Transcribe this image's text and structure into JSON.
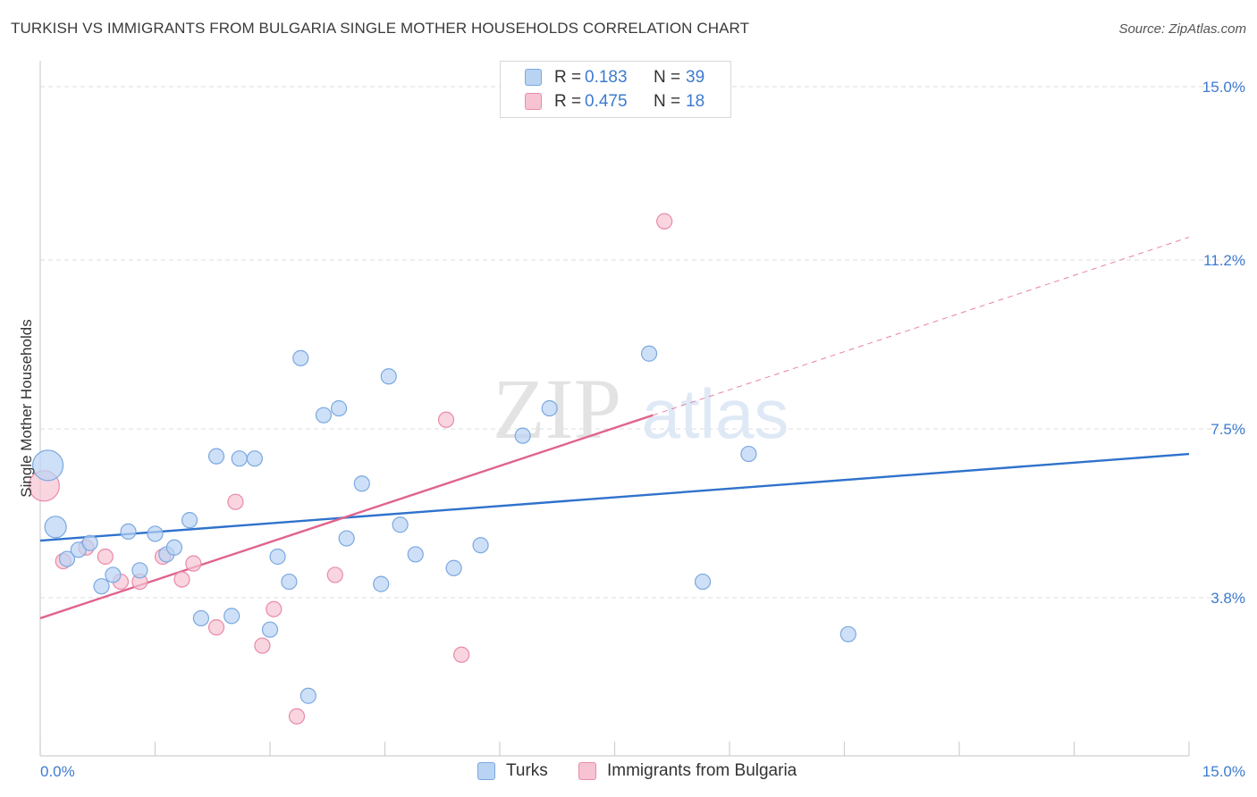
{
  "title": "TURKISH VS IMMIGRANTS FROM BULGARIA SINGLE MOTHER HOUSEHOLDS CORRELATION CHART",
  "source": "Source: ZipAtlas.com",
  "watermark": {
    "part1": "ZIP",
    "part2": "atlas"
  },
  "legend": {
    "rows": [
      {
        "r_label": "R =",
        "r_value": "0.183",
        "n_label": "N =",
        "n_value": "39"
      },
      {
        "r_label": "R =",
        "r_value": "0.475",
        "n_label": "N =",
        "n_value": "18"
      }
    ]
  },
  "bottom_legend": {
    "turks": "Turks",
    "bulgaria": "Immigrants from Bulgaria"
  },
  "colors": {
    "turks_fill": "#b9d3f3",
    "turks_stroke": "#7aa8e0",
    "turks_line": "#2f72cc",
    "bulgaria_fill": "#f7c3d3",
    "bulgaria_stroke": "#e98aa8",
    "bulgaria_line": "#e0648e",
    "tick_text": "#3d7bd0",
    "grid": "#dddddd"
  },
  "chart_data": {
    "type": "scatter",
    "title": "TURKISH VS IMMIGRANTS FROM BULGARIA SINGLE MOTHER HOUSEHOLDS CORRELATION CHART",
    "xlabel": "",
    "ylabel": "Single Mother Households",
    "xlim": [
      0,
      15
    ],
    "ylim": [
      0,
      15
    ],
    "x_tick_labels": [
      "0.0%",
      "15.0%"
    ],
    "y_ticks": [
      3.8,
      7.5,
      11.2,
      15.0
    ],
    "y_tick_labels": [
      "3.8%",
      "7.5%",
      "11.2%",
      "15.0%"
    ],
    "grid": true,
    "legend_position": "top-center",
    "series": [
      {
        "name": "Turks",
        "color": "#b9d3f3",
        "points": [
          {
            "x": 0.1,
            "y": 6.7,
            "size": 3
          },
          {
            "x": 0.2,
            "y": 5.35,
            "size": 2
          },
          {
            "x": 0.35,
            "y": 4.65,
            "size": 1
          },
          {
            "x": 0.5,
            "y": 4.85,
            "size": 1
          },
          {
            "x": 0.65,
            "y": 5.0,
            "size": 1
          },
          {
            "x": 0.8,
            "y": 4.05,
            "size": 1
          },
          {
            "x": 0.95,
            "y": 4.3,
            "size": 1
          },
          {
            "x": 1.15,
            "y": 5.25,
            "size": 1
          },
          {
            "x": 1.3,
            "y": 4.4,
            "size": 1
          },
          {
            "x": 1.5,
            "y": 5.2,
            "size": 1
          },
          {
            "x": 1.65,
            "y": 4.75,
            "size": 1
          },
          {
            "x": 1.75,
            "y": 4.9,
            "size": 1
          },
          {
            "x": 1.95,
            "y": 5.5,
            "size": 1
          },
          {
            "x": 2.1,
            "y": 3.35,
            "size": 1
          },
          {
            "x": 2.3,
            "y": 6.9,
            "size": 1
          },
          {
            "x": 2.5,
            "y": 3.4,
            "size": 1
          },
          {
            "x": 2.6,
            "y": 6.85,
            "size": 1
          },
          {
            "x": 2.8,
            "y": 6.85,
            "size": 1
          },
          {
            "x": 3.0,
            "y": 3.1,
            "size": 1
          },
          {
            "x": 3.1,
            "y": 4.7,
            "size": 1
          },
          {
            "x": 3.25,
            "y": 4.15,
            "size": 1
          },
          {
            "x": 3.4,
            "y": 9.05,
            "size": 1
          },
          {
            "x": 3.5,
            "y": 1.65,
            "size": 1
          },
          {
            "x": 3.7,
            "y": 7.8,
            "size": 1
          },
          {
            "x": 3.9,
            "y": 7.95,
            "size": 1
          },
          {
            "x": 4.0,
            "y": 5.1,
            "size": 1
          },
          {
            "x": 4.2,
            "y": 6.3,
            "size": 1
          },
          {
            "x": 4.45,
            "y": 4.1,
            "size": 1
          },
          {
            "x": 4.55,
            "y": 8.65,
            "size": 1
          },
          {
            "x": 4.7,
            "y": 5.4,
            "size": 1
          },
          {
            "x": 4.9,
            "y": 4.75,
            "size": 1
          },
          {
            "x": 5.4,
            "y": 4.45,
            "size": 1
          },
          {
            "x": 5.75,
            "y": 4.95,
            "size": 1
          },
          {
            "x": 6.3,
            "y": 7.35,
            "size": 1
          },
          {
            "x": 6.65,
            "y": 7.95,
            "size": 1
          },
          {
            "x": 7.95,
            "y": 9.15,
            "size": 1
          },
          {
            "x": 8.65,
            "y": 4.15,
            "size": 1
          },
          {
            "x": 9.25,
            "y": 6.95,
            "size": 1
          },
          {
            "x": 10.55,
            "y": 3.0,
            "size": 1
          }
        ],
        "trend": {
          "x0": 0,
          "y0": 5.05,
          "x1": 15,
          "y1": 6.95
        }
      },
      {
        "name": "Immigrants from Bulgaria",
        "color": "#f7c3d3",
        "points": [
          {
            "x": 0.05,
            "y": 6.25,
            "size": 3
          },
          {
            "x": 0.3,
            "y": 4.6,
            "size": 1
          },
          {
            "x": 0.6,
            "y": 4.9,
            "size": 1
          },
          {
            "x": 0.85,
            "y": 4.7,
            "size": 1
          },
          {
            "x": 1.05,
            "y": 4.15,
            "size": 1
          },
          {
            "x": 1.3,
            "y": 4.15,
            "size": 1
          },
          {
            "x": 1.6,
            "y": 4.7,
            "size": 1
          },
          {
            "x": 1.85,
            "y": 4.2,
            "size": 1
          },
          {
            "x": 2.0,
            "y": 4.55,
            "size": 1
          },
          {
            "x": 2.3,
            "y": 3.15,
            "size": 1
          },
          {
            "x": 2.55,
            "y": 5.9,
            "size": 1
          },
          {
            "x": 2.9,
            "y": 2.75,
            "size": 1
          },
          {
            "x": 3.05,
            "y": 3.55,
            "size": 1
          },
          {
            "x": 3.35,
            "y": 1.2,
            "size": 1
          },
          {
            "x": 3.85,
            "y": 4.3,
            "size": 1
          },
          {
            "x": 5.3,
            "y": 7.7,
            "size": 1
          },
          {
            "x": 5.5,
            "y": 2.55,
            "size": 1
          },
          {
            "x": 8.15,
            "y": 12.05,
            "size": 1
          }
        ],
        "trend": {
          "x0": 0,
          "y0": 3.35,
          "x1": 8.0,
          "y1": 7.8
        },
        "trend_extension": {
          "x0": 8.0,
          "y0": 7.8,
          "x1": 15,
          "y1": 11.7
        }
      }
    ]
  }
}
